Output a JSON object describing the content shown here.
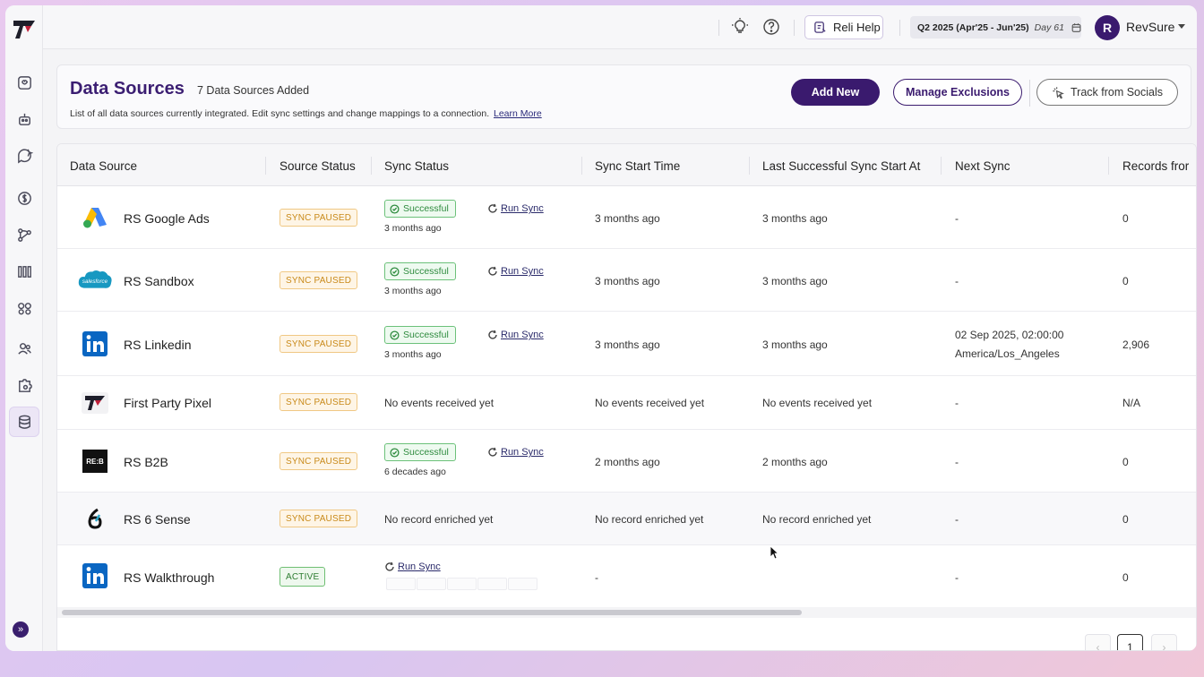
{
  "header": {
    "help_label": "Reli Help",
    "quarter_label": "Q2 2025 (Apr'25 - Jun'25)",
    "day_label": "Day 61",
    "avatar_initial": "R",
    "user_name": "RevSure"
  },
  "page": {
    "title": "Data Sources",
    "count_label": "7 Data Sources Added",
    "description": "List of all data sources currently integrated. Edit sync settings and change mappings to a connection.",
    "learn_more": "Learn More",
    "add_new": "Add New",
    "manage_exclusions": "Manage Exclusions",
    "track_socials": "Track from Socials"
  },
  "table": {
    "columns": [
      "Data Source",
      "Source Status",
      "Sync Status",
      "Sync Start Time",
      "Last Successful Sync Start At",
      "Next Sync",
      "Records fror"
    ],
    "run_sync": "Run Sync",
    "success_label": "Successful",
    "rows": [
      {
        "logo": "google-ads-logo",
        "name": "RS Google Ads",
        "status": "SYNC PAUSED",
        "sync_ago": "3 months ago",
        "start": "3 months ago",
        "last": "3 months ago",
        "next": "-",
        "next2": "",
        "records": "0"
      },
      {
        "logo": "salesforce-logo",
        "name": "RS Sandbox",
        "status": "SYNC PAUSED",
        "sync_ago": "3 months ago",
        "start": "3 months ago",
        "last": "3 months ago",
        "next": "-",
        "next2": "",
        "records": "0"
      },
      {
        "logo": "linkedin-logo",
        "name": "RS Linkedin",
        "status": "SYNC PAUSED",
        "sync_ago": "3 months ago",
        "start": "3 months ago",
        "last": "3 months ago",
        "next": "02 Sep 2025, 02:00:00",
        "next2": "America/Los_Angeles",
        "records": "2,906"
      },
      {
        "logo": "revsure-logo",
        "name": "First Party Pixel",
        "status": "SYNC PAUSED",
        "sync_text": "No events received yet",
        "start": "No events received yet",
        "last": "No events received yet",
        "next": "-",
        "next2": "",
        "records": "N/A"
      },
      {
        "logo": "re-b2b-logo",
        "name": "RS B2B",
        "status": "SYNC PAUSED",
        "sync_ago": "6 decades ago",
        "start": "2 months ago",
        "last": "2 months ago",
        "next": "-",
        "next2": "",
        "records": "0"
      },
      {
        "logo": "6sense-logo",
        "name": "RS 6 Sense",
        "status": "SYNC PAUSED",
        "sync_text": "No record enriched yet",
        "start": "No record enriched yet",
        "last": "No record enriched yet",
        "next": "-",
        "next2": "",
        "records": "0"
      },
      {
        "logo": "linkedin-logo",
        "name": "RS Walkthrough",
        "status": "ACTIVE",
        "start": "-",
        "last": "",
        "next": "-",
        "next2": "",
        "records": "0"
      }
    ]
  },
  "pagination": {
    "prev": "‹",
    "current": "1",
    "next": "›"
  },
  "logos": {
    "salesforce_text": "salesforce",
    "re_b2b_text": "RE:B"
  },
  "colors": {
    "brand": "#3a1a6e",
    "success": "#2e8b3e",
    "paused": "#c98a1a"
  }
}
